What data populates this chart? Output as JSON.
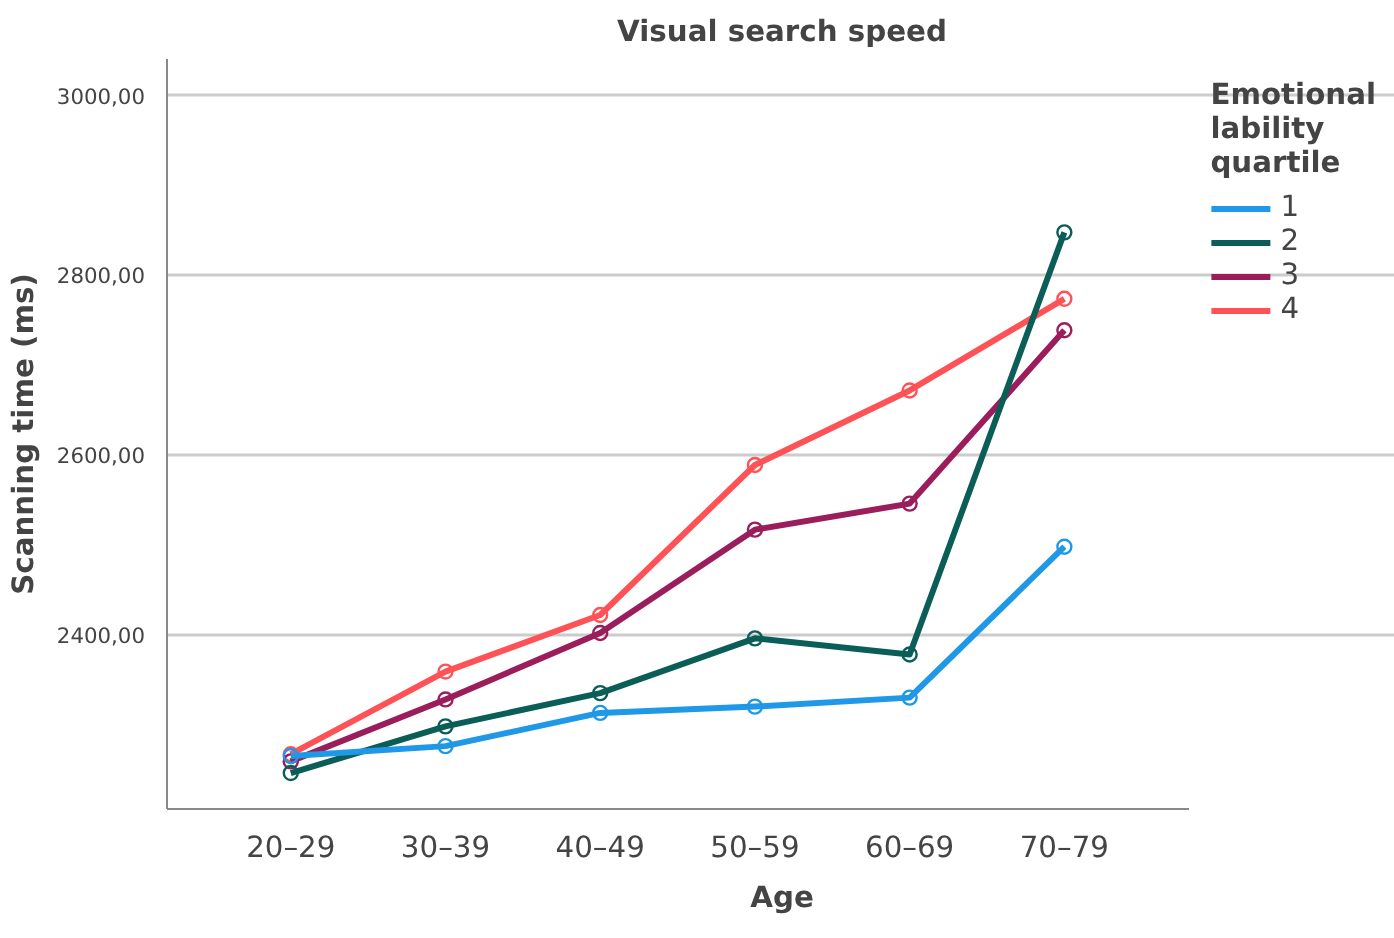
{
  "chart_data": {
    "type": "line",
    "title": "Visual search speed",
    "xlabel": "Age",
    "ylabel": "Scanning time (ms)",
    "legend_title": "Emotional\nlability\nquartile",
    "categories": [
      "20–29",
      "30–39",
      "40–49",
      "50–59",
      "60–69",
      "70–79"
    ],
    "series": [
      {
        "name": "1",
        "color": "#1f98e8",
        "values": [
          2265,
          2276,
          2313,
          2320,
          2330,
          2498
        ]
      },
      {
        "name": "2",
        "color": "#0b5e57",
        "values": [
          2246,
          2298,
          2335,
          2396,
          2378,
          2848
        ]
      },
      {
        "name": "3",
        "color": "#9b1d5b",
        "values": [
          2259,
          2328,
          2402,
          2517,
          2546,
          2739
        ]
      },
      {
        "name": "4",
        "color": "#ff5257",
        "values": [
          2267,
          2359,
          2422,
          2589,
          2672,
          2774
        ]
      }
    ],
    "ylim": [
      2206,
      3041
    ],
    "yticks": [
      {
        "value": 2400,
        "label": "2400,00"
      },
      {
        "value": 2600,
        "label": "2600,00"
      },
      {
        "value": 2800,
        "label": "2800,00"
      },
      {
        "value": 3000,
        "label": "3000,00"
      }
    ],
    "grid": "y",
    "legend": "right",
    "marker": "circle",
    "line_style": "solid"
  }
}
